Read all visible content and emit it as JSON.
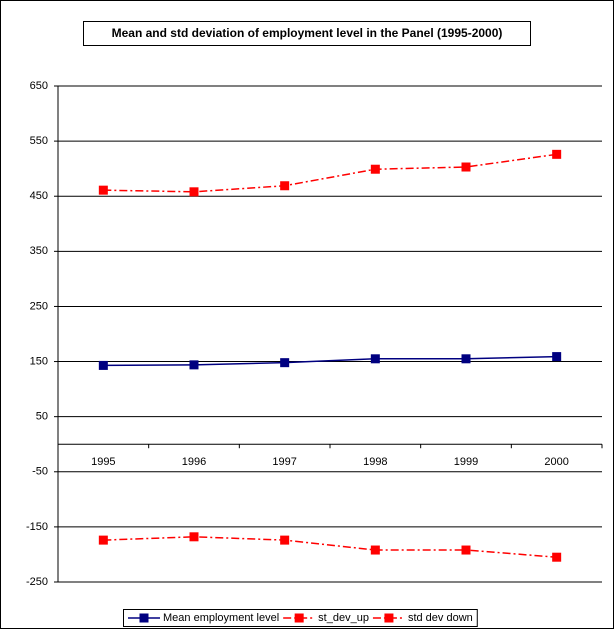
{
  "chart_data": {
    "type": "line",
    "title": "Mean and std deviation of employment level in the Panel (1995-2000)",
    "categories": [
      "1995",
      "1996",
      "1997",
      "1998",
      "1999",
      "2000"
    ],
    "series": [
      {
        "name": "Mean employment level",
        "color": "#000080",
        "line_style": "solid",
        "values": [
          143,
          144,
          148,
          155,
          155,
          159
        ]
      },
      {
        "name": "st_dev_up",
        "color": "#ff0000",
        "line_style": "dash-dot",
        "values": [
          461,
          458,
          469,
          499,
          503,
          526
        ]
      },
      {
        "name": "std dev down",
        "color": "#ff0000",
        "line_style": "dash-dot",
        "values": [
          -174,
          -168,
          -174,
          -192,
          -192,
          -205
        ]
      }
    ],
    "ylim": [
      -250,
      650
    ],
    "yticks": [
      650,
      550,
      450,
      350,
      250,
      150,
      50,
      -50,
      -150,
      -250
    ],
    "grid": true,
    "legend": "bottom"
  }
}
